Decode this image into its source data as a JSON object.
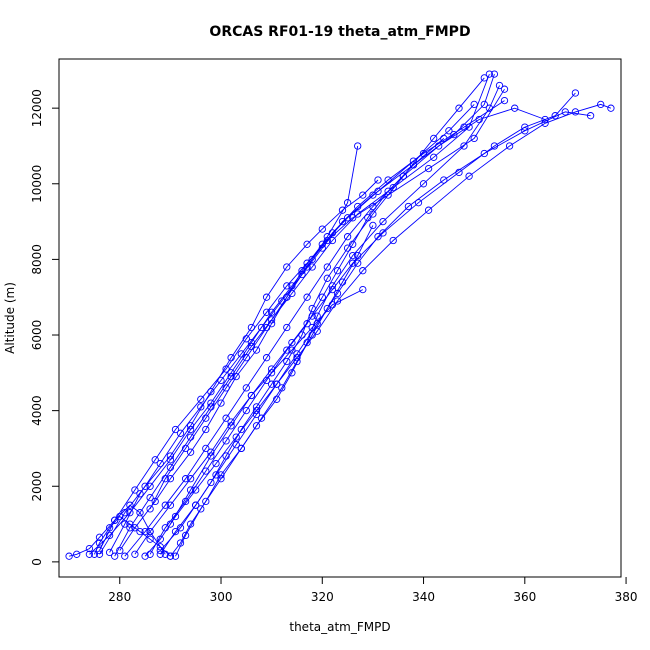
{
  "chart_data": {
    "type": "line",
    "title": "ORCAS RF01-19 theta_atm_FMPD",
    "xlabel": "theta_atm_FMPD",
    "ylabel": "Altitude (m)",
    "xlim": [
      268,
      379
    ],
    "ylim": [
      -400,
      13300
    ],
    "xticks": [
      280,
      300,
      320,
      340,
      360,
      380
    ],
    "yticks": [
      0,
      2000,
      4000,
      6000,
      8000,
      10000,
      12000
    ],
    "marker": "open-circle",
    "line_style": "solid lines connecting points",
    "grid": false,
    "legend": "none",
    "colors": {
      "series": "#0000ff",
      "axes": "#000000",
      "background": "#ffffff"
    },
    "series": [
      {
        "x": [
          270,
          271.5,
          274,
          276,
          279,
          282,
          284,
          286,
          289
        ],
        "y": [
          150,
          200,
          350,
          650,
          1100,
          1500,
          1300,
          800,
          200
        ]
      },
      {
        "x": [
          276,
          281,
          285,
          290,
          294,
          298,
          302,
          306,
          309,
          313,
          317,
          320,
          324,
          328,
          331
        ],
        "y": [
          200,
          1300,
          2000,
          2800,
          3600,
          4500,
          5400,
          6200,
          7000,
          7800,
          8400,
          8800,
          9300,
          9700,
          10100
        ]
      },
      {
        "x": [
          288,
          292,
          295,
          298,
          301,
          304,
          307,
          310,
          313,
          316,
          318,
          321,
          325,
          330,
          336,
          342,
          347,
          352
        ],
        "y": [
          300,
          900,
          1500,
          2100,
          2800,
          3500,
          4100,
          4700,
          5300,
          6000,
          6700,
          7500,
          8300,
          9200,
          10200,
          11200,
          12000,
          12800
        ]
      },
      {
        "x": [
          290,
          292,
          294,
          297,
          300,
          304,
          307,
          311,
          314,
          317,
          319,
          322,
          326,
          332,
          340,
          348,
          353,
          355
        ],
        "y": [
          150,
          500,
          1000,
          1600,
          2300,
          3000,
          3600,
          4300,
          5000,
          5800,
          6500,
          7300,
          8100,
          9000,
          10000,
          11000,
          12000,
          12600
        ]
      },
      {
        "x": [
          280,
          283,
          287,
          290,
          294,
          297,
          300,
          303,
          307,
          310,
          313,
          316,
          320,
          325,
          331,
          338,
          345,
          350
        ],
        "y": [
          300,
          900,
          1600,
          2200,
          2900,
          3500,
          4200,
          4900,
          5600,
          6300,
          7000,
          7700,
          8400,
          9100,
          9800,
          10600,
          11400,
          12100
        ]
      },
      {
        "x": [
          274,
          278,
          282,
          286,
          290,
          294,
          298,
          302,
          306,
          310,
          314,
          318,
          322,
          327,
          333,
          340,
          348,
          356
        ],
        "y": [
          200,
          700,
          1300,
          2000,
          2700,
          3500,
          4200,
          5000,
          5800,
          6600,
          7300,
          8000,
          8700,
          9400,
          10100,
          10800,
          11500,
          12200
        ]
      },
      {
        "x": [
          285,
          288,
          291,
          295,
          299,
          303,
          307,
          311,
          315,
          319,
          323,
          328,
          334,
          341,
          349,
          357,
          364,
          370,
          375,
          377
        ],
        "y": [
          150,
          600,
          1200,
          1900,
          2600,
          3300,
          4000,
          4700,
          5400,
          6100,
          6900,
          7700,
          8500,
          9300,
          10200,
          11000,
          11600,
          11900,
          12100,
          12000
        ]
      },
      {
        "x": [
          278,
          281,
          284,
          288,
          292,
          296,
          300,
          304,
          308,
          312,
          316,
          320,
          324,
          330,
          338,
          346,
          352,
          354
        ],
        "y": [
          250,
          1000,
          1800,
          2600,
          3400,
          4100,
          4800,
          5500,
          6200,
          6900,
          7600,
          8300,
          9000,
          9700,
          10500,
          11300,
          12100,
          12900
        ]
      },
      {
        "x": [
          291,
          293,
          296,
          300,
          304,
          308,
          312,
          315,
          318,
          321,
          324,
          327,
          330
        ],
        "y": [
          150,
          700,
          1400,
          2200,
          3000,
          3800,
          4600,
          5300,
          6000,
          6700,
          7400,
          8100,
          8900
        ]
      },
      {
        "x": [
          283,
          286,
          290,
          294,
          298,
          302,
          306,
          310,
          314,
          318,
          322,
          326,
          332,
          339,
          347,
          354,
          360,
          366,
          370
        ],
        "y": [
          200,
          800,
          1500,
          2200,
          2900,
          3700,
          4400,
          5100,
          5800,
          6500,
          7200,
          7900,
          8700,
          9500,
          10300,
          11000,
          11500,
          11800,
          12400
        ]
      },
      {
        "x": [
          276,
          279,
          283,
          287,
          291,
          296,
          301,
          305,
          309,
          313,
          317,
          321,
          326,
          333,
          341,
          350,
          356
        ],
        "y": [
          300,
          1100,
          1900,
          2700,
          3500,
          4300,
          5100,
          5900,
          6600,
          7300,
          7900,
          8500,
          9100,
          9700,
          10400,
          11200,
          12500
        ]
      },
      {
        "x": [
          288,
          291,
          295,
          299,
          303,
          307,
          311,
          315,
          319,
          323,
          327,
          331,
          337,
          344,
          352,
          360,
          368,
          373
        ],
        "y": [
          200,
          800,
          1500,
          2300,
          3100,
          3900,
          4700,
          5500,
          6300,
          7100,
          7900,
          8600,
          9400,
          10100,
          10800,
          11400,
          11900,
          11800
        ]
      },
      {
        "x": [
          279,
          282,
          286,
          290,
          294,
          298,
          302,
          306,
          310,
          314,
          318,
          322,
          327,
          334,
          342,
          349,
          353
        ],
        "y": [
          150,
          900,
          1700,
          2500,
          3300,
          4100,
          4900,
          5700,
          6400,
          7100,
          7800,
          8500,
          9200,
          9900,
          10700,
          11500,
          12900
        ]
      },
      {
        "x": [
          286,
          289,
          293,
          297,
          301,
          305,
          309,
          313,
          317,
          320,
          323,
          326,
          329,
          333,
          338,
          344
        ],
        "y": [
          200,
          900,
          1600,
          2400,
          3200,
          4000,
          4800,
          5600,
          6300,
          7000,
          7700,
          8400,
          9100,
          9800,
          10500,
          11200
        ]
      },
      {
        "x": [
          281,
          285,
          289,
          293,
          297,
          301,
          305,
          309,
          313,
          317,
          321,
          325,
          330,
          336,
          343,
          351,
          358,
          364
        ],
        "y": [
          150,
          800,
          1500,
          2200,
          3000,
          3800,
          4600,
          5400,
          6200,
          7000,
          7800,
          8600,
          9400,
          10200,
          11000,
          11700,
          12000,
          11700
        ]
      },
      {
        "x": [
          290,
          288,
          286,
          284,
          282,
          280,
          278,
          276,
          275
        ],
        "y": [
          150,
          400,
          600,
          800,
          1000,
          1200,
          900,
          500,
          200
        ]
      },
      {
        "x": [
          328,
          322,
          318,
          314,
          310,
          306,
          302,
          298,
          294,
          290
        ],
        "y": [
          7200,
          6800,
          6200,
          5600,
          5000,
          4400,
          3600,
          2800,
          1900,
          1000
        ]
      },
      {
        "x": [
          327,
          325,
          321,
          317,
          313,
          309,
          305,
          301,
          297,
          293,
          289,
          286
        ],
        "y": [
          11000,
          9500,
          8600,
          7800,
          7000,
          6200,
          5400,
          4600,
          3800,
          3000,
          2200,
          1400
        ]
      }
    ]
  }
}
